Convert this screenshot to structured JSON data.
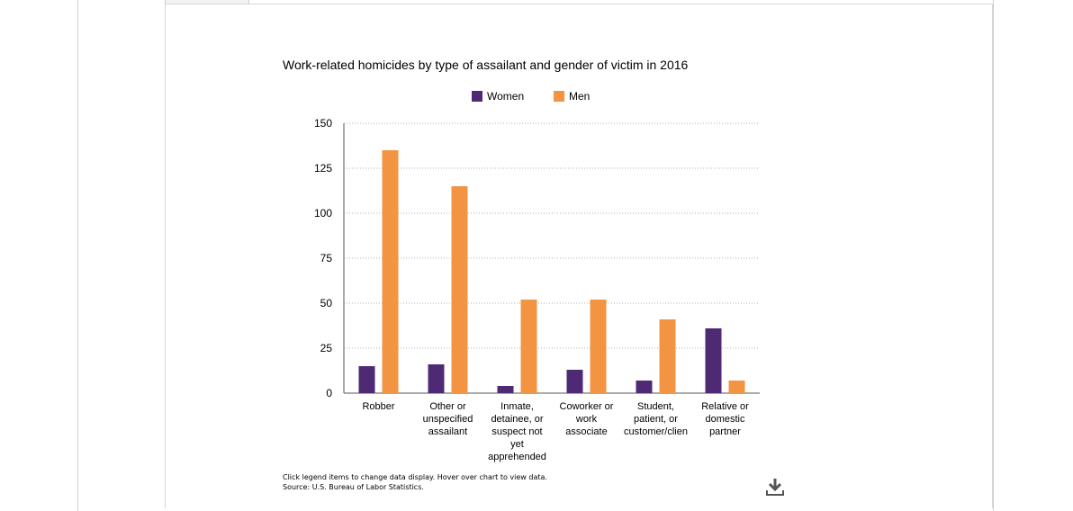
{
  "chart_data": {
    "type": "bar",
    "title": "Work-related homicides by type of assailant and gender of victim in 2016",
    "categories": [
      [
        "Robber"
      ],
      [
        "Other or",
        "unspecified",
        "assailant"
      ],
      [
        "Inmate,",
        "detainee, or",
        "suspect not",
        "yet",
        "apprehended"
      ],
      [
        "Coworker or",
        "work",
        "associate"
      ],
      [
        "Student,",
        "patient, or",
        "customer/clien"
      ],
      [
        "Relative or",
        "domestic",
        "partner"
      ]
    ],
    "series": [
      {
        "name": "Women",
        "color": "#4e2a74",
        "values": [
          15,
          16,
          4,
          13,
          7,
          36
        ]
      },
      {
        "name": "Men",
        "color": "#f39443",
        "values": [
          135,
          115,
          52,
          52,
          41,
          7
        ]
      }
    ],
    "yticks": [
      0,
      25,
      50,
      75,
      100,
      125,
      150
    ],
    "ylim": [
      0,
      150
    ],
    "xlabel": "",
    "ylabel": "",
    "grid": true,
    "legend_position": "top-center"
  },
  "footer": {
    "note": "Click legend items to change data display. Hover over chart to view data.",
    "source": "Source: U.S. Bureau of Labor Statistics."
  },
  "icons": {
    "download": "download-icon"
  }
}
